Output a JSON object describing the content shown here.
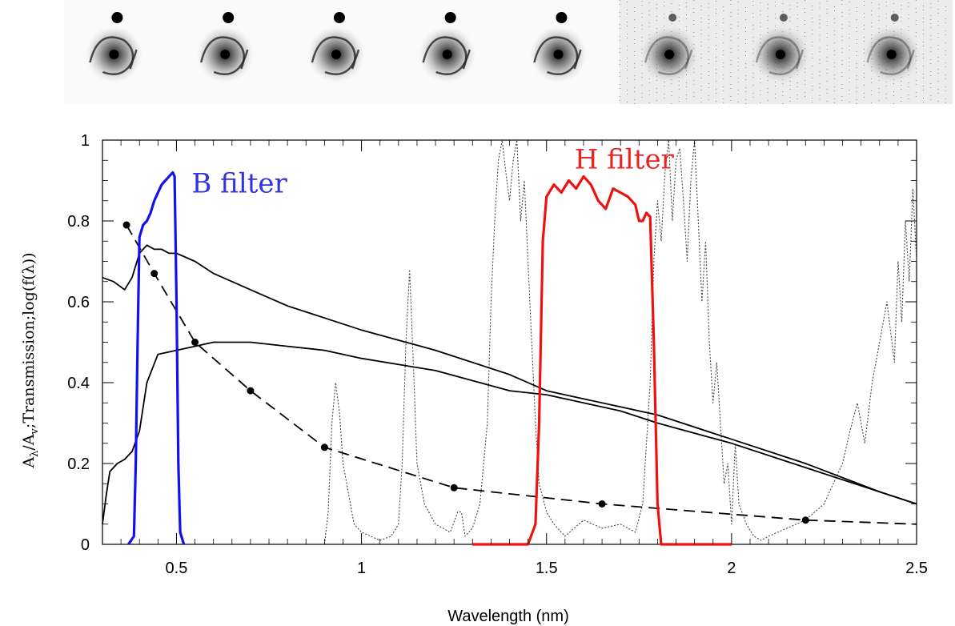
{
  "galaxy_panels": 8,
  "chart_data": {
    "type": "line",
    "xlabel": "Wavelength (nm)",
    "ylabel_parts": [
      "A",
      "λ",
      "/A",
      "v",
      ";Transmission;log(f(λ))"
    ],
    "xlim": [
      0.3,
      2.5
    ],
    "ylim": [
      0,
      1
    ],
    "xticks": [
      0.5,
      1,
      1.5,
      2,
      2.5
    ],
    "yticks": [
      0,
      0.2,
      0.4,
      0.6,
      0.8,
      1
    ],
    "xtick_labels": [
      "0.5",
      "1",
      "1.5",
      "2",
      "2.5"
    ],
    "ytick_labels": [
      "0",
      "0.2",
      "0.4",
      "0.6",
      "0.8",
      "1"
    ],
    "annotations": [
      {
        "text": "B filter",
        "color": "#3333dd",
        "x": 0.67,
        "y": 0.87
      },
      {
        "text": "H filter",
        "color": "#ee2222",
        "x": 1.71,
        "y": 0.93
      }
    ],
    "series": [
      {
        "style": "solid-black",
        "x": [
          0.3,
          0.33,
          0.36,
          0.38,
          0.4,
          0.42,
          0.44,
          0.46,
          0.48,
          0.5,
          0.55,
          0.6,
          0.7,
          0.8,
          0.9,
          1.0,
          1.2,
          1.4,
          1.5,
          1.6,
          1.7,
          1.8,
          2.0,
          2.2,
          2.4,
          2.5
        ],
        "y": [
          0.66,
          0.65,
          0.63,
          0.66,
          0.72,
          0.74,
          0.73,
          0.73,
          0.72,
          0.72,
          0.7,
          0.67,
          0.63,
          0.59,
          0.56,
          0.53,
          0.48,
          0.42,
          0.38,
          0.36,
          0.34,
          0.32,
          0.26,
          0.2,
          0.13,
          0.1
        ]
      },
      {
        "style": "solid-black",
        "x": [
          0.3,
          0.31,
          0.32,
          0.34,
          0.36,
          0.38,
          0.4,
          0.42,
          0.45,
          0.5,
          0.55,
          0.6,
          0.7,
          0.8,
          0.9,
          1.0,
          1.2,
          1.4,
          1.5,
          1.6,
          1.7,
          1.8,
          2.0,
          2.2,
          2.4,
          2.5
        ],
        "y": [
          0.05,
          0.12,
          0.18,
          0.2,
          0.21,
          0.23,
          0.28,
          0.4,
          0.47,
          0.48,
          0.49,
          0.5,
          0.5,
          0.49,
          0.48,
          0.46,
          0.43,
          0.38,
          0.37,
          0.35,
          0.33,
          0.3,
          0.25,
          0.19,
          0.13,
          0.1
        ]
      },
      {
        "style": "dashed-black-markers",
        "x": [
          0.365,
          0.44,
          0.55,
          0.7,
          0.9,
          1.25,
          1.65,
          2.2,
          2.5
        ],
        "y": [
          0.79,
          0.67,
          0.5,
          0.38,
          0.24,
          0.14,
          0.1,
          0.06,
          0.05
        ],
        "markers": [
          0.365,
          0.44,
          0.55,
          0.7,
          0.9,
          1.25,
          1.65,
          2.2
        ]
      },
      {
        "style": "B-filter",
        "color": "#1111ee",
        "x": [
          0.37,
          0.385,
          0.39,
          0.395,
          0.4,
          0.41,
          0.42,
          0.43,
          0.44,
          0.45,
          0.46,
          0.47,
          0.48,
          0.49,
          0.495,
          0.5,
          0.505,
          0.51,
          0.52
        ],
        "y": [
          0.0,
          0.02,
          0.2,
          0.5,
          0.76,
          0.79,
          0.8,
          0.82,
          0.85,
          0.87,
          0.89,
          0.9,
          0.91,
          0.92,
          0.91,
          0.6,
          0.2,
          0.03,
          0.0
        ]
      },
      {
        "style": "H-filter",
        "color": "#ee1111",
        "x": [
          1.3,
          1.45,
          1.47,
          1.48,
          1.49,
          1.5,
          1.52,
          1.54,
          1.56,
          1.58,
          1.6,
          1.62,
          1.64,
          1.66,
          1.68,
          1.7,
          1.72,
          1.74,
          1.75,
          1.76,
          1.77,
          1.78,
          1.79,
          1.8,
          1.81,
          1.83,
          2.0
        ],
        "y": [
          0.0,
          0.0,
          0.05,
          0.3,
          0.75,
          0.86,
          0.89,
          0.87,
          0.9,
          0.88,
          0.91,
          0.89,
          0.85,
          0.83,
          0.88,
          0.87,
          0.86,
          0.84,
          0.8,
          0.8,
          0.82,
          0.81,
          0.5,
          0.1,
          0.0,
          0.0,
          0.0
        ]
      },
      {
        "style": "dotted-atmosphere",
        "color": "#444444",
        "x": [
          0.9,
          0.91,
          0.92,
          0.93,
          0.94,
          0.95,
          0.96,
          0.98,
          1.0,
          1.05,
          1.08,
          1.1,
          1.11,
          1.12,
          1.13,
          1.14,
          1.15,
          1.17,
          1.2,
          1.24,
          1.26,
          1.27,
          1.28,
          1.3,
          1.32,
          1.34,
          1.35,
          1.36,
          1.37,
          1.38,
          1.39,
          1.4,
          1.41,
          1.42,
          1.43,
          1.44,
          1.45,
          1.46,
          1.47,
          1.48,
          1.5,
          1.52,
          1.55,
          1.6,
          1.65,
          1.7,
          1.74,
          1.76,
          1.78,
          1.79,
          1.8,
          1.81,
          1.82,
          1.83,
          1.84,
          1.85,
          1.86,
          1.87,
          1.88,
          1.89,
          1.9,
          1.91,
          1.92,
          1.93,
          1.94,
          1.95,
          1.96,
          1.97,
          1.98,
          1.99,
          2.0,
          2.01,
          2.02,
          2.04,
          2.06,
          2.08,
          2.1,
          2.15,
          2.2,
          2.25,
          2.3,
          2.32,
          2.34,
          2.36,
          2.38,
          2.4,
          2.42,
          2.44,
          2.45,
          2.46,
          2.47,
          2.48,
          2.49,
          2.5
        ],
        "y": [
          0.0,
          0.08,
          0.3,
          0.4,
          0.33,
          0.2,
          0.15,
          0.05,
          0.03,
          0.01,
          0.02,
          0.05,
          0.2,
          0.5,
          0.68,
          0.45,
          0.2,
          0.1,
          0.05,
          0.03,
          0.08,
          0.08,
          0.02,
          0.04,
          0.1,
          0.3,
          0.6,
          0.8,
          0.95,
          1.0,
          0.92,
          0.85,
          0.95,
          1.0,
          0.8,
          0.9,
          0.7,
          0.5,
          0.3,
          0.15,
          0.08,
          0.05,
          0.02,
          0.06,
          0.04,
          0.05,
          0.03,
          0.1,
          0.4,
          0.7,
          0.85,
          0.75,
          0.92,
          1.0,
          0.8,
          0.95,
          0.98,
          0.85,
          0.7,
          0.9,
          1.0,
          0.8,
          0.6,
          0.75,
          0.5,
          0.35,
          0.45,
          0.3,
          0.15,
          0.2,
          0.05,
          0.25,
          0.1,
          0.05,
          0.02,
          0.01,
          0.02,
          0.04,
          0.06,
          0.1,
          0.2,
          0.28,
          0.35,
          0.25,
          0.4,
          0.5,
          0.6,
          0.45,
          0.7,
          0.55,
          0.8,
          0.65,
          0.88,
          0.7
        ]
      }
    ]
  }
}
